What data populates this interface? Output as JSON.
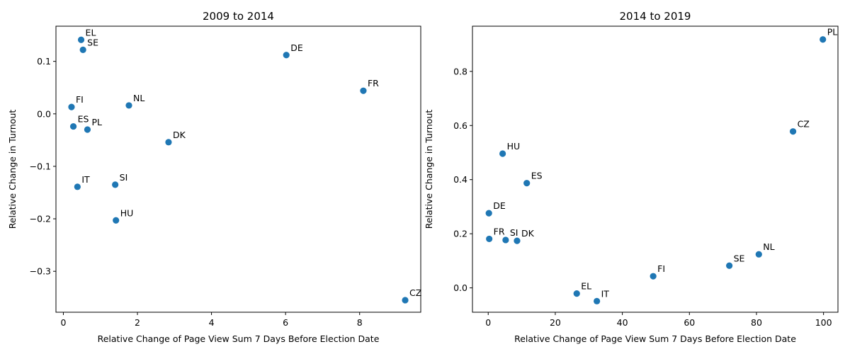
{
  "chart_data": [
    {
      "type": "scatter",
      "title": "2009 to 2014",
      "xlabel": "Relative Change of Page View Sum 7 Days Before Election Date",
      "ylabel": "Relative Change in Turnout",
      "xlim": [
        -0.2,
        9.65
      ],
      "ylim": [
        -0.378,
        0.167
      ],
      "xticks": [
        0,
        2,
        4,
        6,
        8
      ],
      "xtick_labels": [
        "0",
        "2",
        "4",
        "6",
        "8"
      ],
      "yticks": [
        -0.3,
        -0.2,
        -0.1,
        0.0,
        0.1
      ],
      "ytick_labels": [
        "−0.3",
        "−0.2",
        "−0.1",
        "0.0",
        "0.1"
      ],
      "color": "#1f77b4",
      "points": [
        {
          "label": "EL",
          "x": 0.48,
          "y": 0.141
        },
        {
          "label": "SE",
          "x": 0.53,
          "y": 0.122
        },
        {
          "label": "DE",
          "x": 6.02,
          "y": 0.112
        },
        {
          "label": "FR",
          "x": 8.1,
          "y": 0.044
        },
        {
          "label": "FI",
          "x": 0.22,
          "y": 0.013
        },
        {
          "label": "NL",
          "x": 1.77,
          "y": 0.016
        },
        {
          "label": "ES",
          "x": 0.27,
          "y": -0.024
        },
        {
          "label": "PL",
          "x": 0.65,
          "y": -0.03
        },
        {
          "label": "DK",
          "x": 2.84,
          "y": -0.054
        },
        {
          "label": "IT",
          "x": 0.38,
          "y": -0.139
        },
        {
          "label": "SI",
          "x": 1.4,
          "y": -0.135
        },
        {
          "label": "HU",
          "x": 1.42,
          "y": -0.203
        },
        {
          "label": "CZ",
          "x": 9.23,
          "y": -0.355
        }
      ]
    },
    {
      "type": "scatter",
      "title": "2014 to 2019",
      "xlabel": "Relative Change of Page View Sum 7 Days Before Election Date",
      "ylabel": "Relative Change in Turnout",
      "xlim": [
        -4.7,
        104.3
      ],
      "ylim": [
        -0.09,
        0.967
      ],
      "xticks": [
        0,
        20,
        40,
        60,
        80,
        100
      ],
      "xtick_labels": [
        "0",
        "20",
        "40",
        "60",
        "80",
        "100"
      ],
      "yticks": [
        0.0,
        0.2,
        0.4,
        0.6,
        0.8
      ],
      "ytick_labels": [
        "0.0",
        "0.2",
        "0.4",
        "0.6",
        "0.8"
      ],
      "color": "#1f77b4",
      "points": [
        {
          "label": "PL",
          "x": 99.8,
          "y": 0.918
        },
        {
          "label": "CZ",
          "x": 90.9,
          "y": 0.578
        },
        {
          "label": "HU",
          "x": 4.3,
          "y": 0.496
        },
        {
          "label": "ES",
          "x": 11.5,
          "y": 0.387
        },
        {
          "label": "DE",
          "x": 0.2,
          "y": 0.276
        },
        {
          "label": "FR",
          "x": 0.3,
          "y": 0.181
        },
        {
          "label": "SI",
          "x": 5.2,
          "y": 0.177
        },
        {
          "label": "DK",
          "x": 8.6,
          "y": 0.174
        },
        {
          "label": "NL",
          "x": 80.7,
          "y": 0.124
        },
        {
          "label": "SE",
          "x": 71.9,
          "y": 0.082
        },
        {
          "label": "FI",
          "x": 49.2,
          "y": 0.043
        },
        {
          "label": "EL",
          "x": 26.4,
          "y": -0.021
        },
        {
          "label": "IT",
          "x": 32.4,
          "y": -0.049
        }
      ]
    }
  ]
}
